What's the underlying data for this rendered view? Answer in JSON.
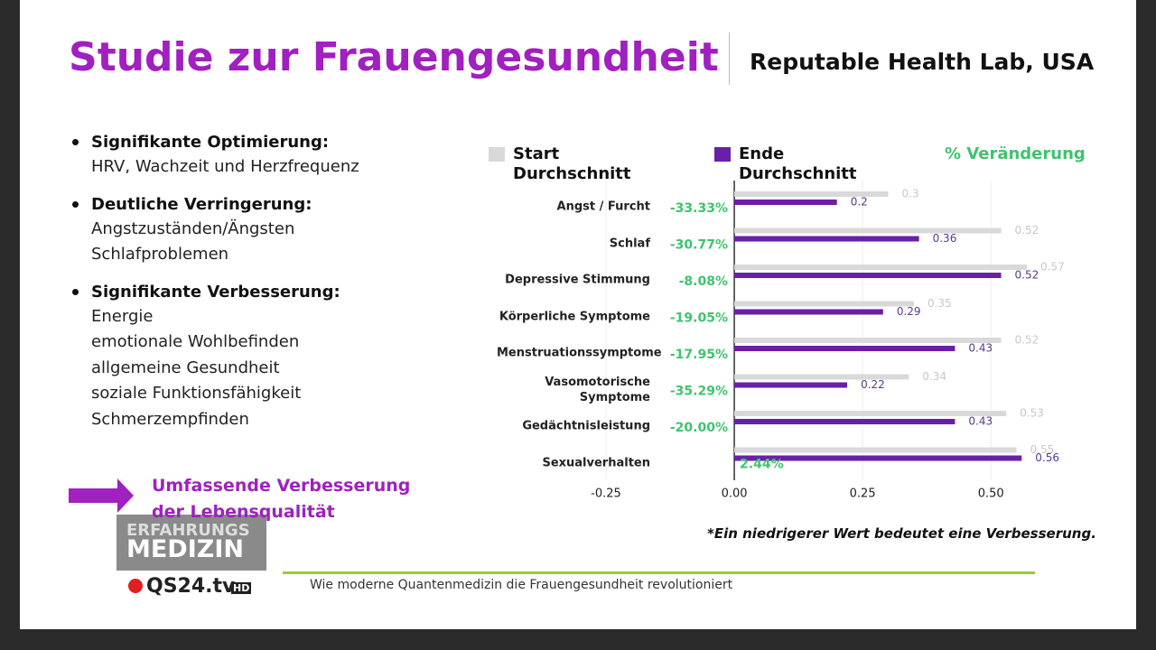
{
  "slide": {
    "title": "Studie zur Frauengesundheit",
    "subtitle": "Reputable Health Lab, USA",
    "bullets": [
      {
        "heading": "Signifikante Optimierung:",
        "lines": [
          "HRV, Wachzeit und Herzfrequenz"
        ]
      },
      {
        "heading": "Deutliche Verringerung:",
        "lines": [
          "Angstzuständen/Ängsten",
          "Schlafproblemen"
        ]
      },
      {
        "heading": "Signifikante Verbesserung:",
        "lines": [
          "Energie",
          "emotionale Wohlbefinden",
          "allgemeine Gesundheit",
          "soziale Funktionsfähigkeit",
          "Schmerzempfinden"
        ]
      }
    ],
    "conclusion": "Umfassende Verbesserung der Lebensqualität",
    "footnote": "*Ein niedrigerer Wert bedeutet eine Verbesserung.",
    "logo": {
      "line1": "ERFAHRUNGS",
      "line2": "MEDIZIN",
      "brand": "QS24.tv",
      "badge": "HD"
    },
    "caption": "Wie moderne Quantenmedizin die Frauengesundheit revolutioniert"
  },
  "chart_data": {
    "type": "bar",
    "orientation": "horizontal",
    "categories": [
      "Angst / Furcht",
      "Schlaf",
      "Depressive Stimmung",
      "Körperliche Symptome",
      "Menstruationssymptome",
      "Vasomotorische Symptome",
      "Gedächtnisleistung",
      "Sexualverhalten"
    ],
    "series": [
      {
        "name": "Start Durchschnitt",
        "color": "#d9d9d9",
        "values": [
          0.3,
          0.52,
          0.57,
          0.35,
          0.52,
          0.34,
          0.53,
          0.55
        ]
      },
      {
        "name": "Ende Durchschnitt",
        "color": "#6a1fa8",
        "values": [
          0.2,
          0.36,
          0.52,
          0.29,
          0.43,
          0.22,
          0.43,
          0.56
        ]
      }
    ],
    "change": {
      "name": "% Veränderung",
      "color": "#3ec46d",
      "values": [
        -33.33,
        -30.77,
        -8.08,
        -19.05,
        -17.95,
        -35.29,
        -20.0,
        2.44
      ],
      "value_labels": [
        "-33.33%",
        "-30.77%",
        "-8.08%",
        "-19.05%",
        "-17.95%",
        "-35.29%",
        "-20.00%",
        "2.44%"
      ]
    },
    "xlim": [
      -0.25,
      0.6
    ],
    "xticks": [
      -0.25,
      {
        "value": 0,
        "label": "0.00"
      },
      0.25,
      {
        "value": 0.5,
        "label": "0.50"
      }
    ],
    "grid": true
  }
}
